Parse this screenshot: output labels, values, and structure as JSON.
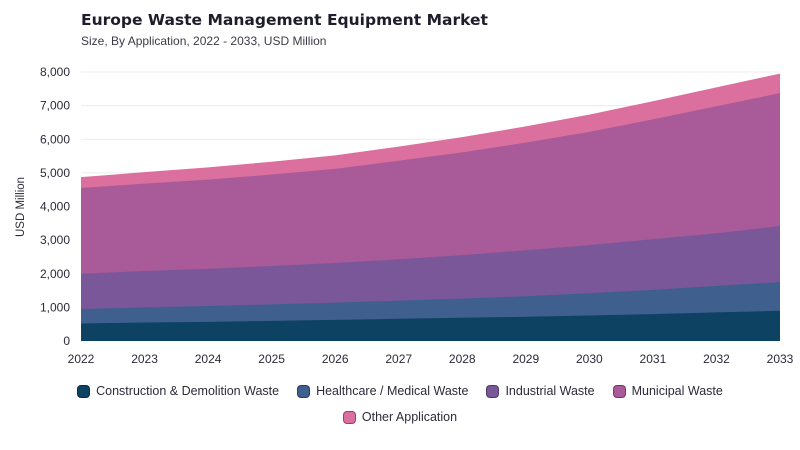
{
  "chart_data": {
    "type": "area",
    "title": "Europe Waste Management Equipment Market",
    "subtitle": "Size, By Application, 2022 - 2033, USD Million",
    "xlabel": "",
    "ylabel": "USD Million",
    "x": [
      "2022",
      "2023",
      "2024",
      "2025",
      "2026",
      "2027",
      "2028",
      "2029",
      "2030",
      "2031",
      "2032",
      "2033"
    ],
    "ylim": [
      0,
      8000
    ],
    "yticks": [
      0,
      1000,
      2000,
      3000,
      4000,
      5000,
      6000,
      7000,
      8000
    ],
    "ytick_labels": [
      "0",
      "1,000",
      "2,000",
      "3,000",
      "4,000",
      "5,000",
      "6,000",
      "7,000",
      "8,000"
    ],
    "stacked": true,
    "grid": true,
    "legend_position": "bottom",
    "series": [
      {
        "name": "Construction & Demolition Waste",
        "color": "#0d4262",
        "values": [
          520,
          550,
          570,
          600,
          630,
          660,
          690,
          720,
          760,
          800,
          850,
          900
        ]
      },
      {
        "name": "Healthcare / Medical Waste",
        "color": "#3f5f8e",
        "values": [
          430,
          450,
          470,
          490,
          510,
          540,
          570,
          610,
          660,
          720,
          790,
          850
        ]
      },
      {
        "name": "Industrial Waste",
        "color": "#7a5799",
        "values": [
          1050,
          1080,
          1110,
          1140,
          1180,
          1230,
          1290,
          1370,
          1430,
          1510,
          1560,
          1670
        ]
      },
      {
        "name": "Municipal Waste",
        "color": "#a95a98",
        "values": [
          2550,
          2600,
          2650,
          2720,
          2800,
          2930,
          3060,
          3200,
          3370,
          3560,
          3780,
          3950
        ]
      },
      {
        "name": "Other Application",
        "color": "#db6f9e",
        "values": [
          300,
          320,
          340,
          360,
          380,
          400,
          430,
          460,
          490,
          520,
          540,
          560
        ]
      }
    ]
  }
}
